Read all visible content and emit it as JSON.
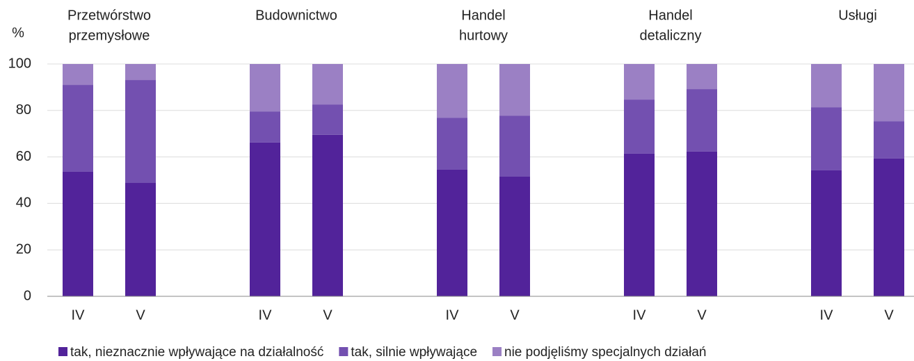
{
  "chart_data": {
    "type": "stacked_bar",
    "y_label": "%",
    "groups": [
      {
        "lines": [
          "Przetwórstwo",
          "przemysłowe"
        ]
      },
      {
        "lines": [
          "Budownictwo"
        ]
      },
      {
        "lines": [
          "Handel",
          "hurtowy"
        ]
      },
      {
        "lines": [
          "Handel",
          "detaliczny"
        ]
      },
      {
        "lines": [
          "Usługi"
        ]
      }
    ],
    "categories": [
      "IV",
      "V",
      "IV",
      "V",
      "IV",
      "V",
      "IV",
      "V",
      "IV",
      "V"
    ],
    "series": [
      {
        "name": "tak, nieznacznie wpływające na działalność",
        "color": "#52239a",
        "values": [
          53.6,
          48.8,
          66.2,
          69.5,
          54.5,
          51.5,
          61.4,
          62.3,
          54.2,
          59.3
        ]
      },
      {
        "name": "tak, silnie wpływające",
        "color": "#7350b0",
        "values": [
          37.4,
          44.3,
          13.4,
          13.1,
          22.4,
          26.3,
          23.3,
          26.9,
          27.2,
          16.1
        ]
      },
      {
        "name": "nie podjęliśmy specjalnych działań",
        "color": "#9b80c4",
        "values": [
          9.0,
          6.9,
          20.4,
          17.4,
          23.1,
          22.2,
          15.3,
          10.8,
          18.6,
          24.6
        ]
      }
    ],
    "ylim": [
      0,
      100
    ],
    "yticks": [
      0,
      20,
      40,
      60,
      80,
      100
    ],
    "grid": true
  }
}
